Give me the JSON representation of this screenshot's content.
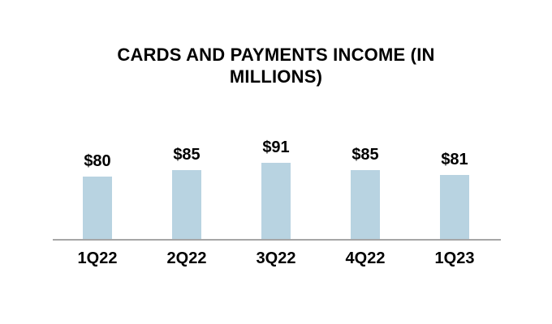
{
  "page": {
    "background": "#ffffff"
  },
  "chart_data": {
    "type": "bar",
    "title": "CARDS AND PAYMENTS INCOME (IN MILLIONS)",
    "title_lines": [
      "CARDS AND PAYMENTS INCOME (IN",
      "MILLIONS)"
    ],
    "categories": [
      "1Q22",
      "2Q22",
      "3Q22",
      "4Q22",
      "1Q23"
    ],
    "values": [
      80,
      85,
      91,
      85,
      81
    ],
    "value_labels": [
      "$80",
      "$85",
      "$91",
      "$85",
      "$81"
    ],
    "xlabel": "",
    "ylabel": "",
    "ylim": [
      30,
      100
    ],
    "y_axis_visible": false,
    "gridlines": false,
    "legend": "none",
    "bar_color": "#b8d3e1",
    "axis_line_color": "#a6a6a6",
    "text_color": "#000000"
  }
}
